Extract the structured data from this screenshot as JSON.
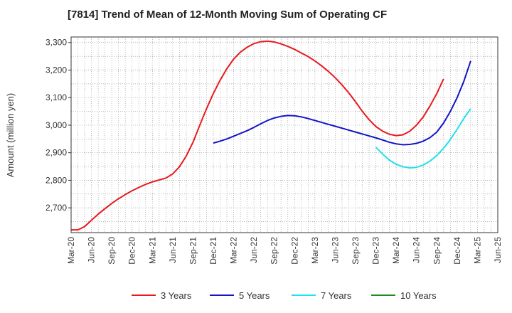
{
  "chart_data": {
    "type": "line",
    "title": "[7814]  Trend of Mean of 12-Month Moving Sum of Operating CF",
    "xlabel": "",
    "ylabel": "Amount (million yen)",
    "ylim": [
      2610,
      3320
    ],
    "yticks": [
      2700,
      2800,
      2900,
      3000,
      3100,
      3200,
      3300
    ],
    "ytick_labels": [
      "2,700",
      "2,800",
      "2,900",
      "3,000",
      "3,100",
      "3,200",
      "3,300"
    ],
    "x_tick_labels": [
      "Mar-20",
      "Jun-20",
      "Sep-20",
      "Dec-20",
      "Mar-21",
      "Jun-21",
      "Sep-21",
      "Dec-21",
      "Mar-22",
      "Jun-22",
      "Sep-22",
      "Dec-22",
      "Mar-23",
      "Jun-23",
      "Sep-23",
      "Dec-23",
      "Mar-24",
      "Jun-24",
      "Sep-24",
      "Dec-24",
      "Mar-25",
      "Jun-25"
    ],
    "grid": true,
    "legend_position": "bottom",
    "series": [
      {
        "name": "3 Years",
        "color": "#e8191d",
        "points": [
          [
            0,
            2620
          ],
          [
            1,
            2620
          ],
          [
            2,
            2632
          ],
          [
            3,
            2655
          ],
          [
            4,
            2677
          ],
          [
            5,
            2697
          ],
          [
            6,
            2716
          ],
          [
            7,
            2733
          ],
          [
            8,
            2748
          ],
          [
            9,
            2762
          ],
          [
            10,
            2774
          ],
          [
            11,
            2785
          ],
          [
            12,
            2794
          ],
          [
            13,
            2801
          ],
          [
            14,
            2808
          ],
          [
            15,
            2823
          ],
          [
            16,
            2849
          ],
          [
            17,
            2888
          ],
          [
            18,
            2938
          ],
          [
            19,
            3000
          ],
          [
            20,
            3060
          ],
          [
            21,
            3115
          ],
          [
            22,
            3163
          ],
          [
            23,
            3205
          ],
          [
            24,
            3240
          ],
          [
            25,
            3265
          ],
          [
            26,
            3283
          ],
          [
            27,
            3296
          ],
          [
            28,
            3303
          ],
          [
            29,
            3305
          ],
          [
            30,
            3302
          ],
          [
            31,
            3295
          ],
          [
            32,
            3286
          ],
          [
            33,
            3275
          ],
          [
            34,
            3262
          ],
          [
            35,
            3249
          ],
          [
            36,
            3233
          ],
          [
            37,
            3215
          ],
          [
            38,
            3195
          ],
          [
            39,
            3172
          ],
          [
            40,
            3146
          ],
          [
            41,
            3117
          ],
          [
            42,
            3085
          ],
          [
            43,
            3050
          ],
          [
            44,
            3020
          ],
          [
            45,
            2995
          ],
          [
            46,
            2978
          ],
          [
            47,
            2967
          ],
          [
            48,
            2962
          ],
          [
            49,
            2965
          ],
          [
            50,
            2978
          ],
          [
            51,
            3000
          ],
          [
            52,
            3030
          ],
          [
            53,
            3070
          ],
          [
            54,
            3115
          ],
          [
            55,
            3168
          ]
        ]
      },
      {
        "name": "5 Years",
        "color": "#1414c8",
        "points": [
          [
            21,
            2935
          ],
          [
            22,
            2942
          ],
          [
            23,
            2950
          ],
          [
            24,
            2960
          ],
          [
            25,
            2970
          ],
          [
            26,
            2980
          ],
          [
            27,
            2992
          ],
          [
            28,
            3005
          ],
          [
            29,
            3017
          ],
          [
            30,
            3026
          ],
          [
            31,
            3032
          ],
          [
            32,
            3035
          ],
          [
            33,
            3034
          ],
          [
            34,
            3030
          ],
          [
            35,
            3024
          ],
          [
            36,
            3017
          ],
          [
            37,
            3010
          ],
          [
            38,
            3003
          ],
          [
            39,
            2996
          ],
          [
            40,
            2989
          ],
          [
            41,
            2982
          ],
          [
            42,
            2975
          ],
          [
            43,
            2968
          ],
          [
            44,
            2961
          ],
          [
            45,
            2954
          ],
          [
            46,
            2946
          ],
          [
            47,
            2938
          ],
          [
            48,
            2932
          ],
          [
            49,
            2929
          ],
          [
            50,
            2930
          ],
          [
            51,
            2934
          ],
          [
            52,
            2942
          ],
          [
            53,
            2955
          ],
          [
            54,
            2975
          ],
          [
            55,
            3008
          ],
          [
            56,
            3050
          ],
          [
            57,
            3100
          ],
          [
            58,
            3160
          ],
          [
            59,
            3233
          ]
        ]
      },
      {
        "name": "7 Years",
        "color": "#22e0e8",
        "points": [
          [
            45,
            2920
          ],
          [
            46,
            2895
          ],
          [
            47,
            2873
          ],
          [
            48,
            2858
          ],
          [
            49,
            2849
          ],
          [
            50,
            2845
          ],
          [
            51,
            2847
          ],
          [
            52,
            2855
          ],
          [
            53,
            2870
          ],
          [
            54,
            2890
          ],
          [
            55,
            2916
          ],
          [
            56,
            2948
          ],
          [
            57,
            2985
          ],
          [
            58,
            3025
          ],
          [
            59,
            3060
          ]
        ]
      },
      {
        "name": "10 Years",
        "color": "#1f8a1f",
        "points": []
      }
    ]
  }
}
